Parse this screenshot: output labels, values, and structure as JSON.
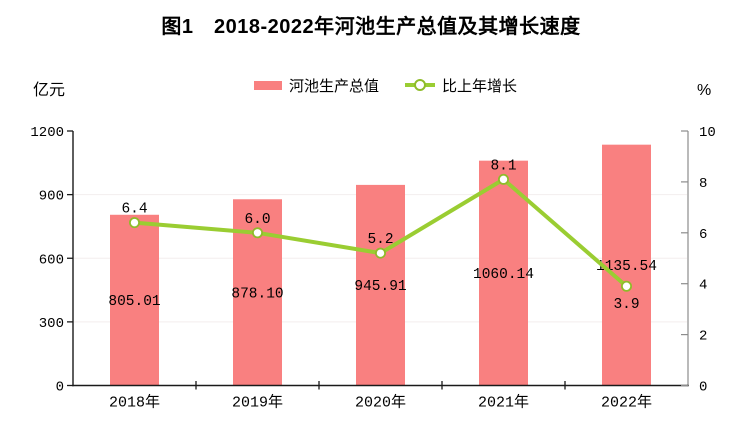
{
  "title": "图1　2018-2022年河池生产总值及其增长速度",
  "left_axis_unit": "亿元",
  "right_axis_unit": "%",
  "colors": {
    "bar": "#f98080",
    "line": "#9acd32",
    "marker_fill": "#ffffff",
    "marker_ring": "#8fbc2a",
    "axis": "#1a1a1a",
    "right_axis": "#8c8c8c",
    "gridline": "#f3eeee",
    "text": "#000000"
  },
  "chart_data": {
    "type": "bar+line",
    "title": "图1　2018-2022年河池生产总值及其增长速度",
    "categories": [
      "2018年",
      "2019年",
      "2020年",
      "2021年",
      "2022年"
    ],
    "series": [
      {
        "name": "河池生产总值",
        "type": "bar",
        "axis": "left",
        "values": [
          805.01,
          878.1,
          945.91,
          1060.14,
          1135.54
        ],
        "labels": [
          "805.01",
          "878.10",
          "945.91",
          "1060.14",
          "1135.54"
        ]
      },
      {
        "name": "比上年增长",
        "type": "line",
        "axis": "right",
        "values": [
          6.4,
          6.0,
          5.2,
          8.1,
          3.9
        ],
        "labels": [
          "6.4",
          "6.0",
          "5.2",
          "8.1",
          "3.9"
        ],
        "label_positions": [
          "above",
          "above",
          "above",
          "above",
          "below"
        ]
      }
    ],
    "left_axis": {
      "unit": "亿元",
      "min": 0,
      "max": 1200,
      "ticks": [
        0,
        300,
        600,
        900,
        1200
      ]
    },
    "right_axis": {
      "unit": "%",
      "min": 0,
      "max": 10,
      "ticks": [
        0,
        2,
        4,
        6,
        8,
        10
      ]
    },
    "grid": "faint horizontal lines at left-axis ticks",
    "legend_position": "top-center"
  }
}
